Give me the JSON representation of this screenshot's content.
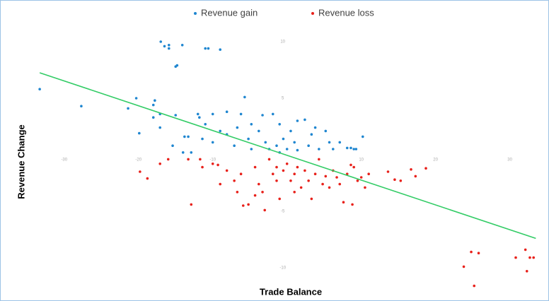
{
  "chart_data": {
    "type": "scatter",
    "x_label": "Trade Balance",
    "y_label": "Revenue Change",
    "xlim": [
      -37.6,
      34.8
    ],
    "ylim": [
      -12,
      13
    ],
    "xticks": [
      -30,
      -20,
      -10,
      10,
      20,
      30
    ],
    "yticks": [
      10,
      5,
      -5,
      -10
    ],
    "series": [
      {
        "name": "Revenue gain",
        "color": "#1f86d0",
        "x": [
          -33.3,
          -27.7,
          -17.0,
          -16.5,
          -15.9,
          -15.9,
          -14.1,
          -11.0,
          -10.6,
          -9.0,
          -15.0,
          -14.8,
          -21.4,
          -20.3,
          -17.8,
          -18.0,
          -19.9,
          -18.0,
          -17.1,
          -15.0,
          -13.8,
          -13.3,
          -14.0,
          -12.0,
          -11.8,
          -10.0,
          -8.1,
          -5.7,
          -6.2,
          -4.8,
          -3.3,
          -1.9,
          -1.0,
          0.5,
          1.4,
          2.4,
          3.8,
          5.2,
          7.1,
          8.1,
          9.0,
          10.2,
          -10.0,
          -8.1,
          -7.1,
          -5.2,
          -3.8,
          -2.9,
          -2.4,
          -1.4,
          -0.5,
          0.0,
          1.0,
          1.4,
          2.9,
          4.3,
          5.7,
          3.3,
          -11.4,
          -12.9,
          -9.0,
          -6.7,
          -4.8,
          -1.0,
          6.2,
          8.6,
          9.3,
          -15.4,
          -17.1,
          -11.0
        ],
        "y": [
          5.8,
          4.3,
          10.0,
          9.6,
          9.4,
          9.7,
          9.7,
          9.4,
          9.4,
          9.3,
          7.8,
          7.9,
          4.1,
          5.0,
          4.8,
          4.4,
          1.9,
          3.3,
          2.4,
          3.5,
          1.6,
          1.6,
          0.2,
          3.6,
          3.3,
          3.6,
          3.8,
          5.1,
          3.6,
          2.7,
          3.5,
          3.6,
          2.7,
          2.1,
          3.0,
          3.1,
          2.4,
          2.1,
          1.1,
          0.6,
          0.5,
          1.6,
          1.1,
          1.8,
          0.8,
          1.4,
          2.1,
          1.1,
          0.5,
          0.8,
          1.4,
          0.5,
          1.1,
          0.4,
          0.8,
          0.5,
          1.1,
          1.8,
          1.4,
          0.2,
          2.1,
          2.4,
          0.5,
          0.2,
          0.5,
          0.6,
          0.5,
          0.8,
          3.6,
          2.7
        ]
      },
      {
        "name": "Revenue loss",
        "color": "#e8211b",
        "x": [
          -19.8,
          -18.8,
          -17.1,
          -16.0,
          -12.9,
          -13.3,
          -11.7,
          -11.4,
          -10.0,
          -9.3,
          -8.1,
          -7.1,
          -6.7,
          -5.9,
          -5.2,
          -4.3,
          -3.8,
          -3.3,
          -3.0,
          -2.4,
          -1.9,
          -1.4,
          -1.0,
          -0.5,
          0.0,
          0.5,
          1.0,
          1.4,
          1.9,
          2.4,
          2.9,
          3.3,
          3.8,
          4.3,
          4.8,
          5.2,
          5.7,
          6.2,
          6.7,
          7.1,
          7.6,
          8.1,
          8.6,
          8.8,
          9.0,
          9.5,
          10.0,
          10.5,
          11.0,
          13.6,
          14.5,
          15.3,
          16.7,
          17.3,
          18.7,
          23.8,
          24.8,
          25.8,
          25.2,
          30.8,
          32.1,
          32.7,
          32.3,
          33.2,
          -4.3,
          -6.2,
          -9.0,
          1.0,
          -1.4
        ],
        "y": [
          -1.5,
          -2.1,
          -0.8,
          -0.4,
          -4.4,
          -0.4,
          -0.4,
          -1.1,
          -0.8,
          -0.9,
          -1.4,
          -2.3,
          -3.3,
          -4.5,
          -4.4,
          -1.1,
          -2.6,
          -3.3,
          -4.9,
          -0.4,
          -1.7,
          -1.1,
          -3.9,
          -1.4,
          -0.8,
          -2.3,
          -1.7,
          -1.1,
          -2.9,
          -1.4,
          -2.3,
          -3.9,
          -1.7,
          -0.4,
          -2.6,
          -1.9,
          -2.9,
          -1.4,
          -2.0,
          -2.6,
          -4.2,
          -1.7,
          -0.9,
          -4.4,
          -1.1,
          -2.3,
          -2.0,
          -2.9,
          -1.7,
          -1.5,
          -2.2,
          -2.3,
          -1.3,
          -1.9,
          -1.2,
          -9.9,
          -8.6,
          -8.7,
          -11.6,
          -9.1,
          -8.4,
          -9.1,
          -10.3,
          -9.1,
          -3.6,
          -1.7,
          -2.6,
          -3.3,
          -2.3
        ]
      }
    ],
    "trendline": {
      "color": "#33cc66",
      "x": [
        -33.3,
        33.5
      ],
      "y": [
        7.25,
        -7.4
      ]
    }
  }
}
